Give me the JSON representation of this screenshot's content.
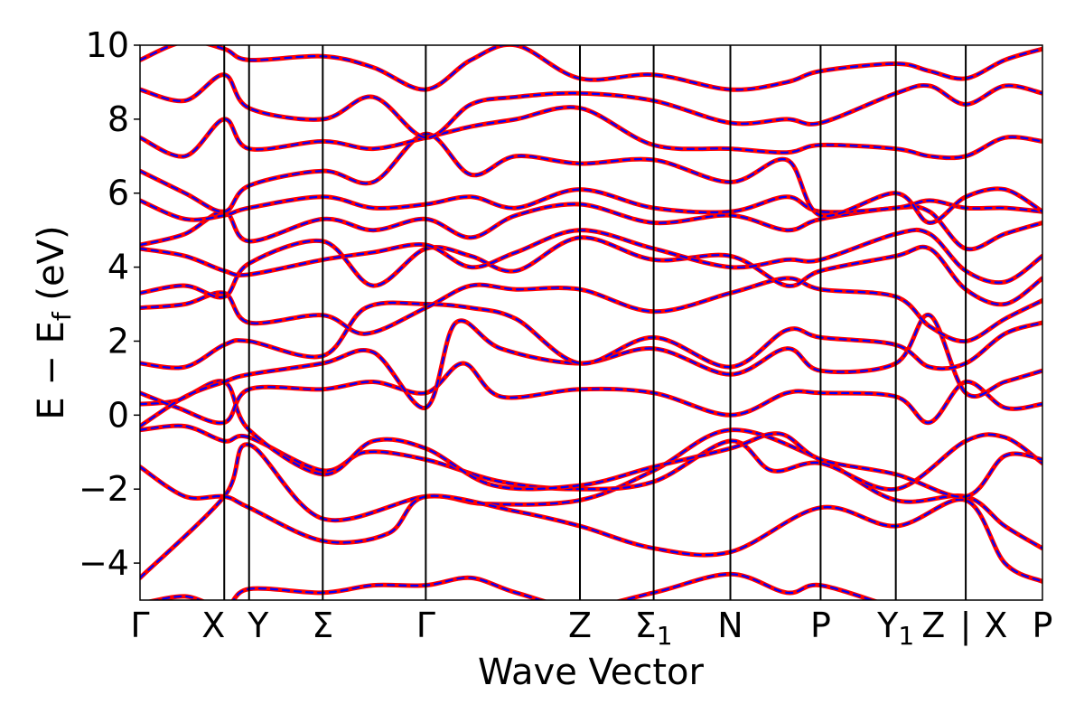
{
  "chart_data": {
    "type": "line",
    "title": "",
    "xlabel": "Wave Vector",
    "ylabel": "E − E",
    "ylabel_sub": "f",
    "ylabel_unit": " (eV)",
    "ylim": [
      -5,
      10
    ],
    "yticks": [
      {
        "value": -4,
        "label": "−4"
      },
      {
        "value": -2,
        "label": "−2"
      },
      {
        "value": 0,
        "label": "0"
      },
      {
        "value": 2,
        "label": "2"
      },
      {
        "value": 4,
        "label": "4"
      },
      {
        "value": 6,
        "label": "6"
      },
      {
        "value": 8,
        "label": "8"
      },
      {
        "value": 10,
        "label": "10"
      }
    ],
    "kpath": {
      "x_range": [
        0,
        12.0
      ],
      "boundaries": [
        1.12,
        1.45,
        2.43,
        3.8,
        5.85,
        6.83,
        7.85,
        9.05,
        10.05,
        10.98
      ],
      "labels": [
        {
          "x": 0.0,
          "label": "Γ",
          "sub": ""
        },
        {
          "x": 1.12,
          "label": "X",
          "sub": ""
        },
        {
          "x": 1.45,
          "label": "Y",
          "sub": ""
        },
        {
          "x": 2.43,
          "label": "Σ",
          "sub": ""
        },
        {
          "x": 3.8,
          "label": "Γ",
          "sub": ""
        },
        {
          "x": 5.85,
          "label": "Z",
          "sub": ""
        },
        {
          "x": 6.83,
          "label": "Σ",
          "sub": "1"
        },
        {
          "x": 7.85,
          "label": "N",
          "sub": ""
        },
        {
          "x": 9.05,
          "label": "P",
          "sub": ""
        },
        {
          "x": 10.05,
          "label": "Y",
          "sub": "1"
        },
        {
          "x": 10.55,
          "label": "Z",
          "sub": ""
        },
        {
          "x": 10.98,
          "label": "|",
          "sub": ""
        },
        {
          "x": 11.38,
          "label": "X",
          "sub": ""
        },
        {
          "x": 12.0,
          "label": "P",
          "sub": ""
        }
      ]
    },
    "series_style": [
      {
        "color": "#ff0000",
        "style": "solid"
      },
      {
        "color": "#0000ff",
        "style": "dashed"
      }
    ],
    "bands": [
      {
        "x": [
          0,
          1.12,
          1.45,
          2.43,
          3.8,
          4.6,
          5.85,
          6.83,
          7.85,
          9.05,
          10.05,
          10.98,
          11.5,
          12.0
        ],
        "y": [
          -4.4,
          -2.2,
          -0.8,
          -2.8,
          -2.2,
          -2.4,
          -2.3,
          -1.5,
          -0.4,
          -1.2,
          -2.3,
          -2.2,
          -3.0,
          -3.6
        ]
      },
      {
        "x": [
          0,
          0.6,
          1.12,
          1.45,
          2.43,
          3.3,
          3.8,
          5.0,
          5.85,
          6.83,
          7.85,
          9.05,
          10.05,
          10.98,
          11.5,
          12.0
        ],
        "y": [
          -1.4,
          -2.2,
          -2.2,
          -2.5,
          -3.4,
          -3.2,
          -2.2,
          -2.6,
          -3.0,
          -3.6,
          -3.7,
          -2.5,
          -3.0,
          -2.3,
          -4.0,
          -4.5
        ]
      },
      {
        "x": [
          0,
          0.6,
          1.12,
          1.45,
          2.43,
          3.0,
          3.8,
          4.8,
          5.85,
          6.83,
          7.85,
          8.4,
          9.05,
          10.05,
          10.98,
          11.5,
          12.0
        ],
        "y": [
          -0.4,
          -0.3,
          -0.7,
          -0.6,
          -1.5,
          -1.0,
          -1.2,
          -1.8,
          -2.0,
          -1.8,
          -0.7,
          -1.5,
          -1.3,
          -2.0,
          -0.7,
          -0.6,
          -1.3
        ]
      },
      {
        "x": [
          0,
          0.5,
          1.12,
          1.45,
          2.43,
          3.1,
          3.8,
          4.7,
          5.85,
          6.83,
          7.85,
          8.5,
          9.05,
          10.05,
          10.98,
          11.5,
          12.0
        ],
        "y": [
          0.3,
          0.4,
          0.9,
          -0.4,
          -1.6,
          -0.7,
          -0.9,
          -1.9,
          -1.9,
          -1.4,
          -0.9,
          -0.5,
          -1.2,
          -1.6,
          -2.2,
          -1.1,
          -1.2
        ]
      },
      {
        "x": [
          0,
          0.5,
          1.12,
          1.45,
          2.43,
          3.1,
          3.8,
          4.3,
          4.8,
          5.85,
          6.83,
          7.85,
          8.6,
          9.05,
          10.05,
          10.5,
          10.98,
          11.5,
          12.0
        ],
        "y": [
          0.6,
          0.2,
          -0.2,
          0.7,
          0.7,
          0.9,
          0.6,
          1.4,
          0.5,
          0.7,
          0.6,
          0.0,
          0.6,
          0.6,
          0.5,
          -0.2,
          0.9,
          0.2,
          0.3
        ]
      },
      {
        "x": [
          0,
          0.6,
          1.12,
          1.45,
          2.43,
          3.1,
          3.8,
          4.2,
          4.8,
          5.85,
          6.83,
          7.85,
          8.6,
          9.05,
          10.05,
          10.5,
          10.98,
          11.5,
          12.0
        ],
        "y": [
          -0.3,
          0.5,
          0.9,
          1.1,
          1.4,
          1.7,
          0.2,
          2.5,
          1.8,
          1.4,
          1.8,
          1.1,
          1.8,
          1.2,
          1.4,
          2.7,
          0.6,
          0.9,
          1.2
        ]
      },
      {
        "x": [
          0,
          0.6,
          1.12,
          1.45,
          2.43,
          3.0,
          3.8,
          4.4,
          5.0,
          5.85,
          6.83,
          7.85,
          8.6,
          9.05,
          10.05,
          10.5,
          10.98,
          11.5,
          12.0
        ],
        "y": [
          1.4,
          1.3,
          1.9,
          2.0,
          1.6,
          2.9,
          3.0,
          2.9,
          2.6,
          1.4,
          2.1,
          1.3,
          2.3,
          2.1,
          1.9,
          1.3,
          1.4,
          2.2,
          2.5
        ]
      },
      {
        "x": [
          0,
          0.6,
          1.12,
          1.45,
          2.43,
          3.0,
          3.8,
          4.4,
          5.0,
          5.85,
          6.83,
          7.85,
          8.6,
          9.05,
          10.05,
          10.5,
          10.98,
          11.5,
          12.0
        ],
        "y": [
          2.9,
          3.0,
          3.3,
          2.5,
          2.7,
          2.2,
          2.9,
          3.5,
          3.4,
          3.4,
          2.8,
          3.3,
          3.7,
          3.4,
          3.2,
          2.4,
          2.0,
          2.6,
          3.1
        ]
      },
      {
        "x": [
          0,
          0.6,
          1.12,
          1.45,
          2.43,
          3.1,
          3.8,
          4.4,
          5.0,
          5.85,
          6.83,
          7.85,
          8.6,
          9.05,
          10.05,
          10.5,
          10.98,
          11.5,
          12.0
        ],
        "y": [
          3.3,
          3.5,
          3.2,
          4.1,
          4.7,
          3.5,
          4.5,
          4.3,
          3.9,
          4.8,
          4.2,
          4.3,
          3.5,
          3.9,
          4.3,
          4.5,
          3.4,
          3.0,
          3.7
        ]
      },
      {
        "x": [
          0,
          0.6,
          1.12,
          1.45,
          2.43,
          3.1,
          3.8,
          4.4,
          5.0,
          5.85,
          6.83,
          7.85,
          8.6,
          9.05,
          10.05,
          10.5,
          10.98,
          11.5,
          12.0
        ],
        "y": [
          4.5,
          4.3,
          3.9,
          3.8,
          4.2,
          4.4,
          4.6,
          4.0,
          4.4,
          5.0,
          4.5,
          4.0,
          4.2,
          4.2,
          4.9,
          4.9,
          3.9,
          3.6,
          4.3
        ]
      },
      {
        "x": [
          0,
          0.6,
          1.12,
          1.45,
          2.43,
          3.1,
          3.8,
          4.4,
          5.0,
          5.85,
          6.83,
          7.85,
          8.6,
          9.05,
          10.05,
          10.5,
          10.98,
          11.5,
          12.0
        ],
        "y": [
          4.6,
          4.9,
          5.5,
          4.7,
          5.3,
          5.0,
          5.3,
          4.8,
          5.4,
          5.7,
          5.2,
          5.4,
          5.0,
          5.3,
          5.6,
          5.5,
          4.5,
          4.9,
          5.2
        ]
      },
      {
        "x": [
          0,
          0.6,
          1.12,
          1.45,
          2.43,
          3.1,
          3.8,
          4.4,
          5.0,
          5.85,
          6.83,
          7.85,
          8.6,
          9.05,
          10.05,
          10.5,
          10.98,
          11.5,
          12.0
        ],
        "y": [
          5.8,
          5.3,
          5.4,
          5.6,
          5.9,
          5.6,
          5.7,
          5.9,
          5.6,
          6.1,
          5.6,
          5.5,
          5.9,
          5.5,
          5.6,
          5.8,
          5.6,
          5.6,
          5.5
        ]
      },
      {
        "x": [
          0,
          0.6,
          1.12,
          1.45,
          2.43,
          3.1,
          3.8,
          4.4,
          5.0,
          5.85,
          6.83,
          7.85,
          8.6,
          9.05,
          10.05,
          10.5,
          10.98,
          11.5,
          12.0
        ],
        "y": [
          6.6,
          6.0,
          5.5,
          6.2,
          6.6,
          6.3,
          7.6,
          6.5,
          7.0,
          6.8,
          6.9,
          6.3,
          6.9,
          5.4,
          6.0,
          5.2,
          5.9,
          6.1,
          5.5
        ]
      },
      {
        "x": [
          0,
          0.6,
          1.12,
          1.45,
          2.43,
          3.1,
          3.8,
          4.4,
          5.0,
          5.85,
          6.83,
          7.85,
          8.6,
          9.05,
          10.05,
          10.5,
          10.98,
          11.5,
          12.0
        ],
        "y": [
          7.5,
          7.0,
          8.0,
          7.2,
          7.4,
          7.2,
          7.5,
          7.8,
          8.0,
          8.3,
          7.3,
          7.2,
          7.1,
          7.3,
          7.2,
          7.0,
          7.0,
          7.5,
          7.4
        ]
      },
      {
        "x": [
          0,
          0.6,
          1.12,
          1.45,
          2.43,
          3.1,
          3.8,
          4.4,
          5.0,
          5.85,
          6.83,
          7.85,
          8.6,
          9.05,
          10.05,
          10.5,
          10.98,
          11.5,
          12.0
        ],
        "y": [
          8.8,
          8.5,
          9.2,
          8.3,
          8.0,
          8.6,
          7.5,
          8.4,
          8.6,
          8.7,
          8.5,
          7.9,
          8.0,
          7.9,
          8.7,
          8.9,
          8.4,
          8.9,
          8.7
        ]
      },
      {
        "x": [
          0,
          0.6,
          1.12,
          1.45,
          2.43,
          3.1,
          3.8,
          4.4,
          5.0,
          5.85,
          6.83,
          7.85,
          8.6,
          9.05,
          10.05,
          10.5,
          10.98,
          11.5,
          12.0
        ],
        "y": [
          9.6,
          10.1,
          9.9,
          9.6,
          9.7,
          9.4,
          8.8,
          9.6,
          10.0,
          9.1,
          9.2,
          8.8,
          9.0,
          9.3,
          9.5,
          9.3,
          9.1,
          9.6,
          9.9
        ]
      },
      {
        "x": [
          0,
          0.6,
          1.12,
          1.45,
          2.43,
          3.1,
          3.8,
          4.4,
          5.0,
          5.85,
          6.83,
          7.85,
          8.6,
          9.05,
          10.05,
          10.5,
          10.98,
          11.5,
          12.0
        ],
        "y": [
          -5.1,
          -4.9,
          -5.2,
          -4.7,
          -4.8,
          -4.6,
          -4.6,
          -4.4,
          -4.8,
          -5.2,
          -4.8,
          -4.3,
          -4.8,
          -4.6,
          -5.2,
          -5.3,
          -5.1,
          -5.2,
          -5.4
        ]
      }
    ]
  }
}
